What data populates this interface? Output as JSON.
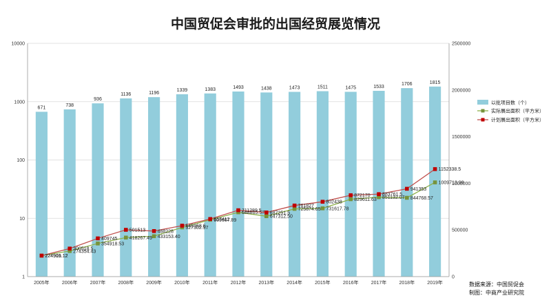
{
  "chart_data": {
    "type": "bar+line",
    "title": "中国贸促会审批的出国经贸展览情况",
    "categories": [
      "2005年",
      "2006年",
      "2007年",
      "2008年",
      "2009年",
      "2010年",
      "2011年",
      "2012年",
      "2013年",
      "2014年",
      "2015年",
      "2016年",
      "2017年",
      "2018年",
      "2019年"
    ],
    "left_axis": {
      "scale": "log",
      "range": [
        1,
        10000
      ],
      "ticks": [
        "1",
        "10",
        "100",
        "1000",
        "10000"
      ]
    },
    "right_axis": {
      "scale": "linear",
      "range": [
        0,
        2500000
      ],
      "ticks": [
        "0",
        "500000",
        "1000000",
        "1500000",
        "2000000",
        "2500000"
      ]
    },
    "legend_position": "right",
    "series": [
      {
        "name": "以批项目数（个）",
        "type": "bar",
        "axis": "left",
        "color": "#92cddc",
        "values": [
          671,
          738,
          936,
          1136,
          1196,
          1339,
          1383,
          1493,
          1438,
          1473,
          1511,
          1475,
          1533,
          1706,
          1815
        ],
        "labels": [
          "671",
          "738",
          "936",
          "1136",
          "1196",
          "1339",
          "1383",
          "1493",
          "1438",
          "1473",
          "1511",
          "1475",
          "1533",
          "1706",
          "1815"
        ]
      },
      {
        "name": "实际展出面积（平方米）",
        "type": "line",
        "axis": "right",
        "color": "#8db04a",
        "marker_color": "#77933c",
        "values": [
          224919.12,
          274354.43,
          354918.53,
          418267.49,
          433153.4,
          527302.97,
          609667.89,
          688865.57,
          647312.5,
          725874.65,
          731617.78,
          829611.63,
          851132.07,
          844768.57,
          1009713.98
        ],
        "labels": [
          "224919.12",
          "274354.43",
          "354918.53",
          "418267.49",
          "433153.40",
          "527302.97",
          "609667.89",
          "688865.57",
          "647312.50",
          "725874.65",
          "731617.78",
          "829611.63",
          "851132.07",
          "844768.57",
          "1009713.98"
        ]
      },
      {
        "name": "计划展出面积（平方米）",
        "type": "line",
        "axis": "right",
        "color": "#c0504d",
        "marker_color": "#c00000",
        "values": [
          224901.12,
          300518.5,
          409745,
          501513,
          488228,
          545968.6,
          617412,
          711289.5,
          687251.5,
          761827,
          802438,
          872170,
          883761.5,
          941353,
          1152338.5
        ],
        "labels": [
          "224901.12",
          "300518.5",
          "409745",
          "501513",
          "488228",
          "545968.6",
          "617412",
          "711289.5",
          "687251.5",
          "761827",
          "802438",
          "872170",
          "883761.5",
          "941353",
          "1152338.5"
        ]
      }
    ]
  },
  "source_lines": [
    "数据来源：中国贸促会",
    "制图：中商产业研究院"
  ]
}
